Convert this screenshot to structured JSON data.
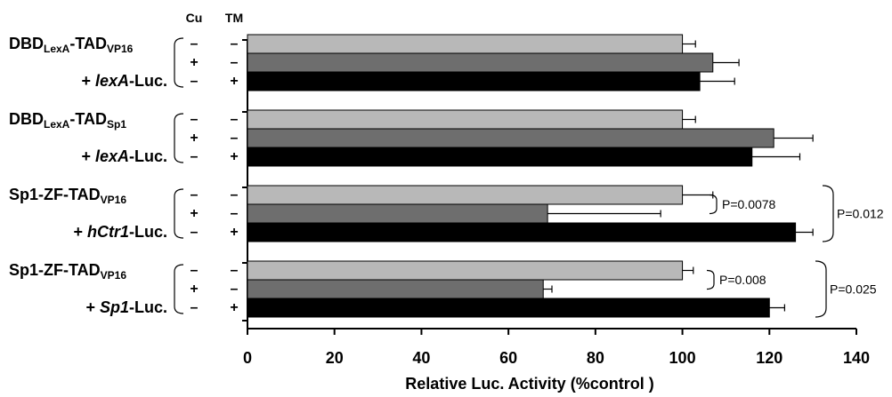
{
  "chart_data": {
    "type": "bar",
    "orientation": "horizontal",
    "xlabel": "Relative Luc. Activity (%control )",
    "xlim": [
      0,
      140
    ],
    "xticks": [
      "0",
      "20",
      "40",
      "60",
      "80",
      "100",
      "120",
      "140"
    ],
    "column_headers": {
      "cu": "Cu",
      "tm": "TM"
    },
    "condition_signs": [
      {
        "cu": "–",
        "tm": "–"
      },
      {
        "cu": "+",
        "tm": "–"
      },
      {
        "cu": "–",
        "tm": "+"
      }
    ],
    "bar_colors": [
      "#b8b8b8",
      "#6e6e6e",
      "#000000"
    ],
    "groups": [
      {
        "label_line1": "DBD",
        "label_line1_sub1": "LexA",
        "label_line1_mid": "-TAD",
        "label_line1_sub2": "VP16",
        "label_line2_prefix": "+ ",
        "label_line2_italic": "lexA",
        "label_line2_suffix": "-Luc.",
        "values": [
          100,
          107,
          104
        ],
        "errors": [
          3,
          6,
          8
        ],
        "pvalue_pair": "",
        "pvalue_outer": ""
      },
      {
        "label_line1": "DBD",
        "label_line1_sub1": "LexA",
        "label_line1_mid": "-TAD",
        "label_line1_sub2": "Sp1",
        "label_line2_prefix": "+ ",
        "label_line2_italic": "lexA",
        "label_line2_suffix": "-Luc.",
        "values": [
          100,
          121,
          116
        ],
        "errors": [
          3,
          9,
          11
        ],
        "pvalue_pair": "",
        "pvalue_outer": ""
      },
      {
        "label_line1": "Sp1-ZF-TAD",
        "label_line1_sub1": "",
        "label_line1_mid": "",
        "label_line1_sub2": "VP16",
        "label_line2_prefix": "+ ",
        "label_line2_italic": "hCtr1",
        "label_line2_suffix": "-Luc.",
        "values": [
          100,
          69,
          126
        ],
        "errors": [
          7,
          26,
          4
        ],
        "pvalue_pair": "P=0.0078",
        "pvalue_outer": "P=0.012"
      },
      {
        "label_line1": "Sp1-ZF-TAD",
        "label_line1_sub1": "",
        "label_line1_mid": "",
        "label_line1_sub2": "VP16",
        "label_line2_prefix": "+ ",
        "label_line2_italic": "Sp1",
        "label_line2_suffix": "-Luc.",
        "values": [
          100,
          68,
          120
        ],
        "errors": [
          2.5,
          2,
          3.5
        ],
        "pvalue_pair": "P=0.008",
        "pvalue_outer": "P=0.025"
      }
    ]
  }
}
